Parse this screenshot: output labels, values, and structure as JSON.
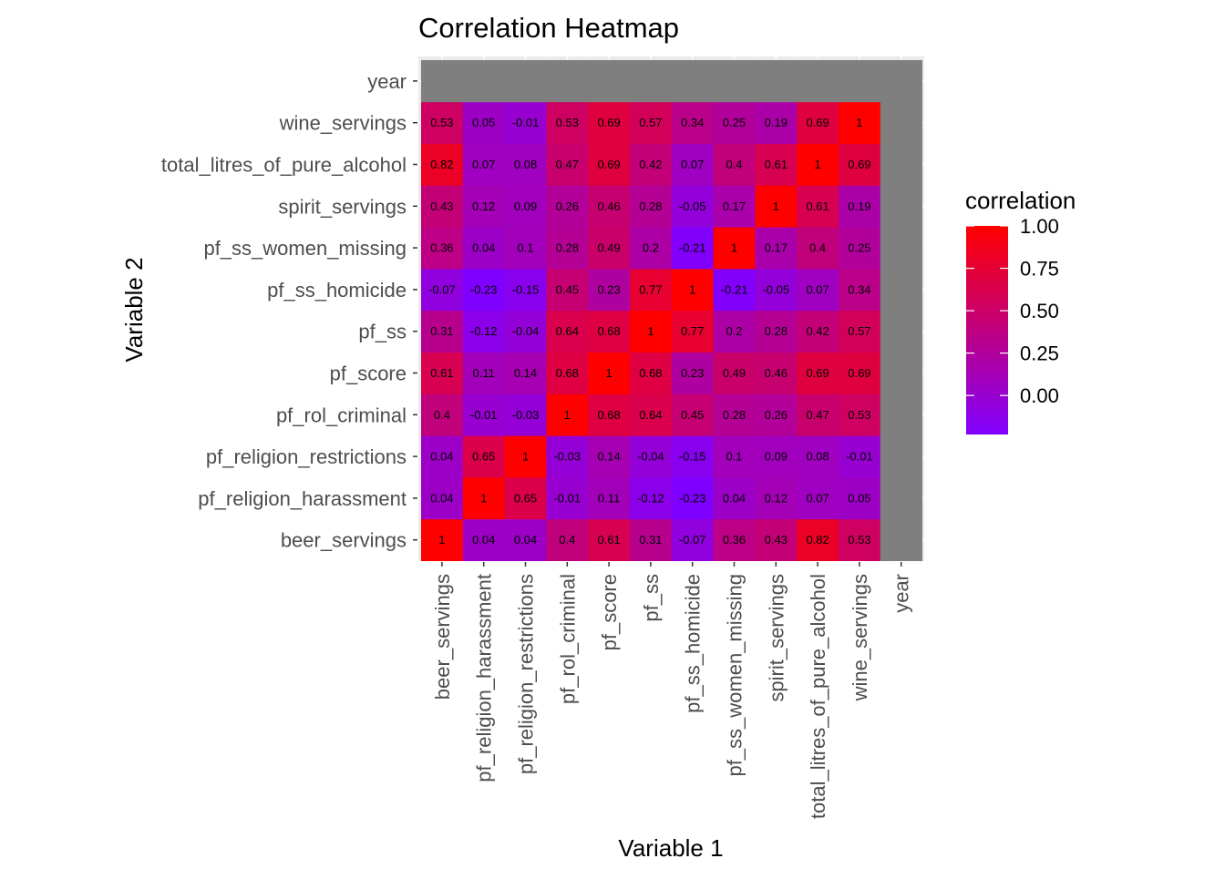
{
  "chart_data": {
    "type": "heatmap",
    "title": "Correlation Heatmap",
    "xlabel": "Variable 1",
    "ylabel": "Variable 2",
    "variables": [
      "beer_servings",
      "pf_religion_harassment",
      "pf_religion_restrictions",
      "pf_rol_criminal",
      "pf_score",
      "pf_ss",
      "pf_ss_homicide",
      "pf_ss_women_missing",
      "spirit_servings",
      "total_litres_of_pure_alcohol",
      "wine_servings",
      "year"
    ],
    "matrix": [
      [
        1,
        0.04,
        0.04,
        0.4,
        0.61,
        0.31,
        -0.07,
        0.36,
        0.43,
        0.82,
        0.53,
        null
      ],
      [
        0.04,
        1,
        0.65,
        -0.01,
        0.11,
        -0.12,
        -0.23,
        0.04,
        0.12,
        0.07,
        0.05,
        null
      ],
      [
        0.04,
        0.65,
        1,
        -0.03,
        0.14,
        -0.04,
        -0.15,
        0.1,
        0.09,
        0.08,
        -0.01,
        null
      ],
      [
        0.4,
        -0.01,
        -0.03,
        1,
        0.68,
        0.64,
        0.45,
        0.28,
        0.26,
        0.47,
        0.53,
        null
      ],
      [
        0.61,
        0.11,
        0.14,
        0.68,
        1,
        0.68,
        0.23,
        0.49,
        0.46,
        0.69,
        0.69,
        null
      ],
      [
        0.31,
        -0.12,
        -0.04,
        0.64,
        0.68,
        1,
        0.77,
        0.2,
        0.28,
        0.42,
        0.57,
        null
      ],
      [
        -0.07,
        -0.23,
        -0.15,
        0.45,
        0.23,
        0.77,
        1,
        -0.21,
        -0.05,
        0.07,
        0.34,
        null
      ],
      [
        0.36,
        0.04,
        0.1,
        0.28,
        0.49,
        0.2,
        -0.21,
        1,
        0.17,
        0.4,
        0.25,
        null
      ],
      [
        0.43,
        0.12,
        0.09,
        0.26,
        0.46,
        0.28,
        -0.05,
        0.17,
        1,
        0.61,
        0.19,
        null
      ],
      [
        0.82,
        0.07,
        0.08,
        0.47,
        0.69,
        0.42,
        0.07,
        0.4,
        0.61,
        1,
        0.69,
        null
      ],
      [
        0.53,
        0.05,
        -0.01,
        0.53,
        0.69,
        0.57,
        0.34,
        0.25,
        0.19,
        0.69,
        1,
        null
      ],
      [
        null,
        null,
        null,
        null,
        null,
        null,
        null,
        null,
        null,
        null,
        null,
        null
      ]
    ],
    "na_color": "#7f7f7f",
    "legend": {
      "title": "correlation",
      "position": "right",
      "breaks": [
        1.0,
        0.75,
        0.5,
        0.25,
        0.0
      ],
      "break_labels": [
        "1.00",
        "0.75",
        "0.50",
        "0.25",
        "0.00"
      ],
      "range": [
        -0.23,
        1
      ],
      "low_color": "#8000ff",
      "high_color": "#ff0000"
    },
    "grid": true
  }
}
